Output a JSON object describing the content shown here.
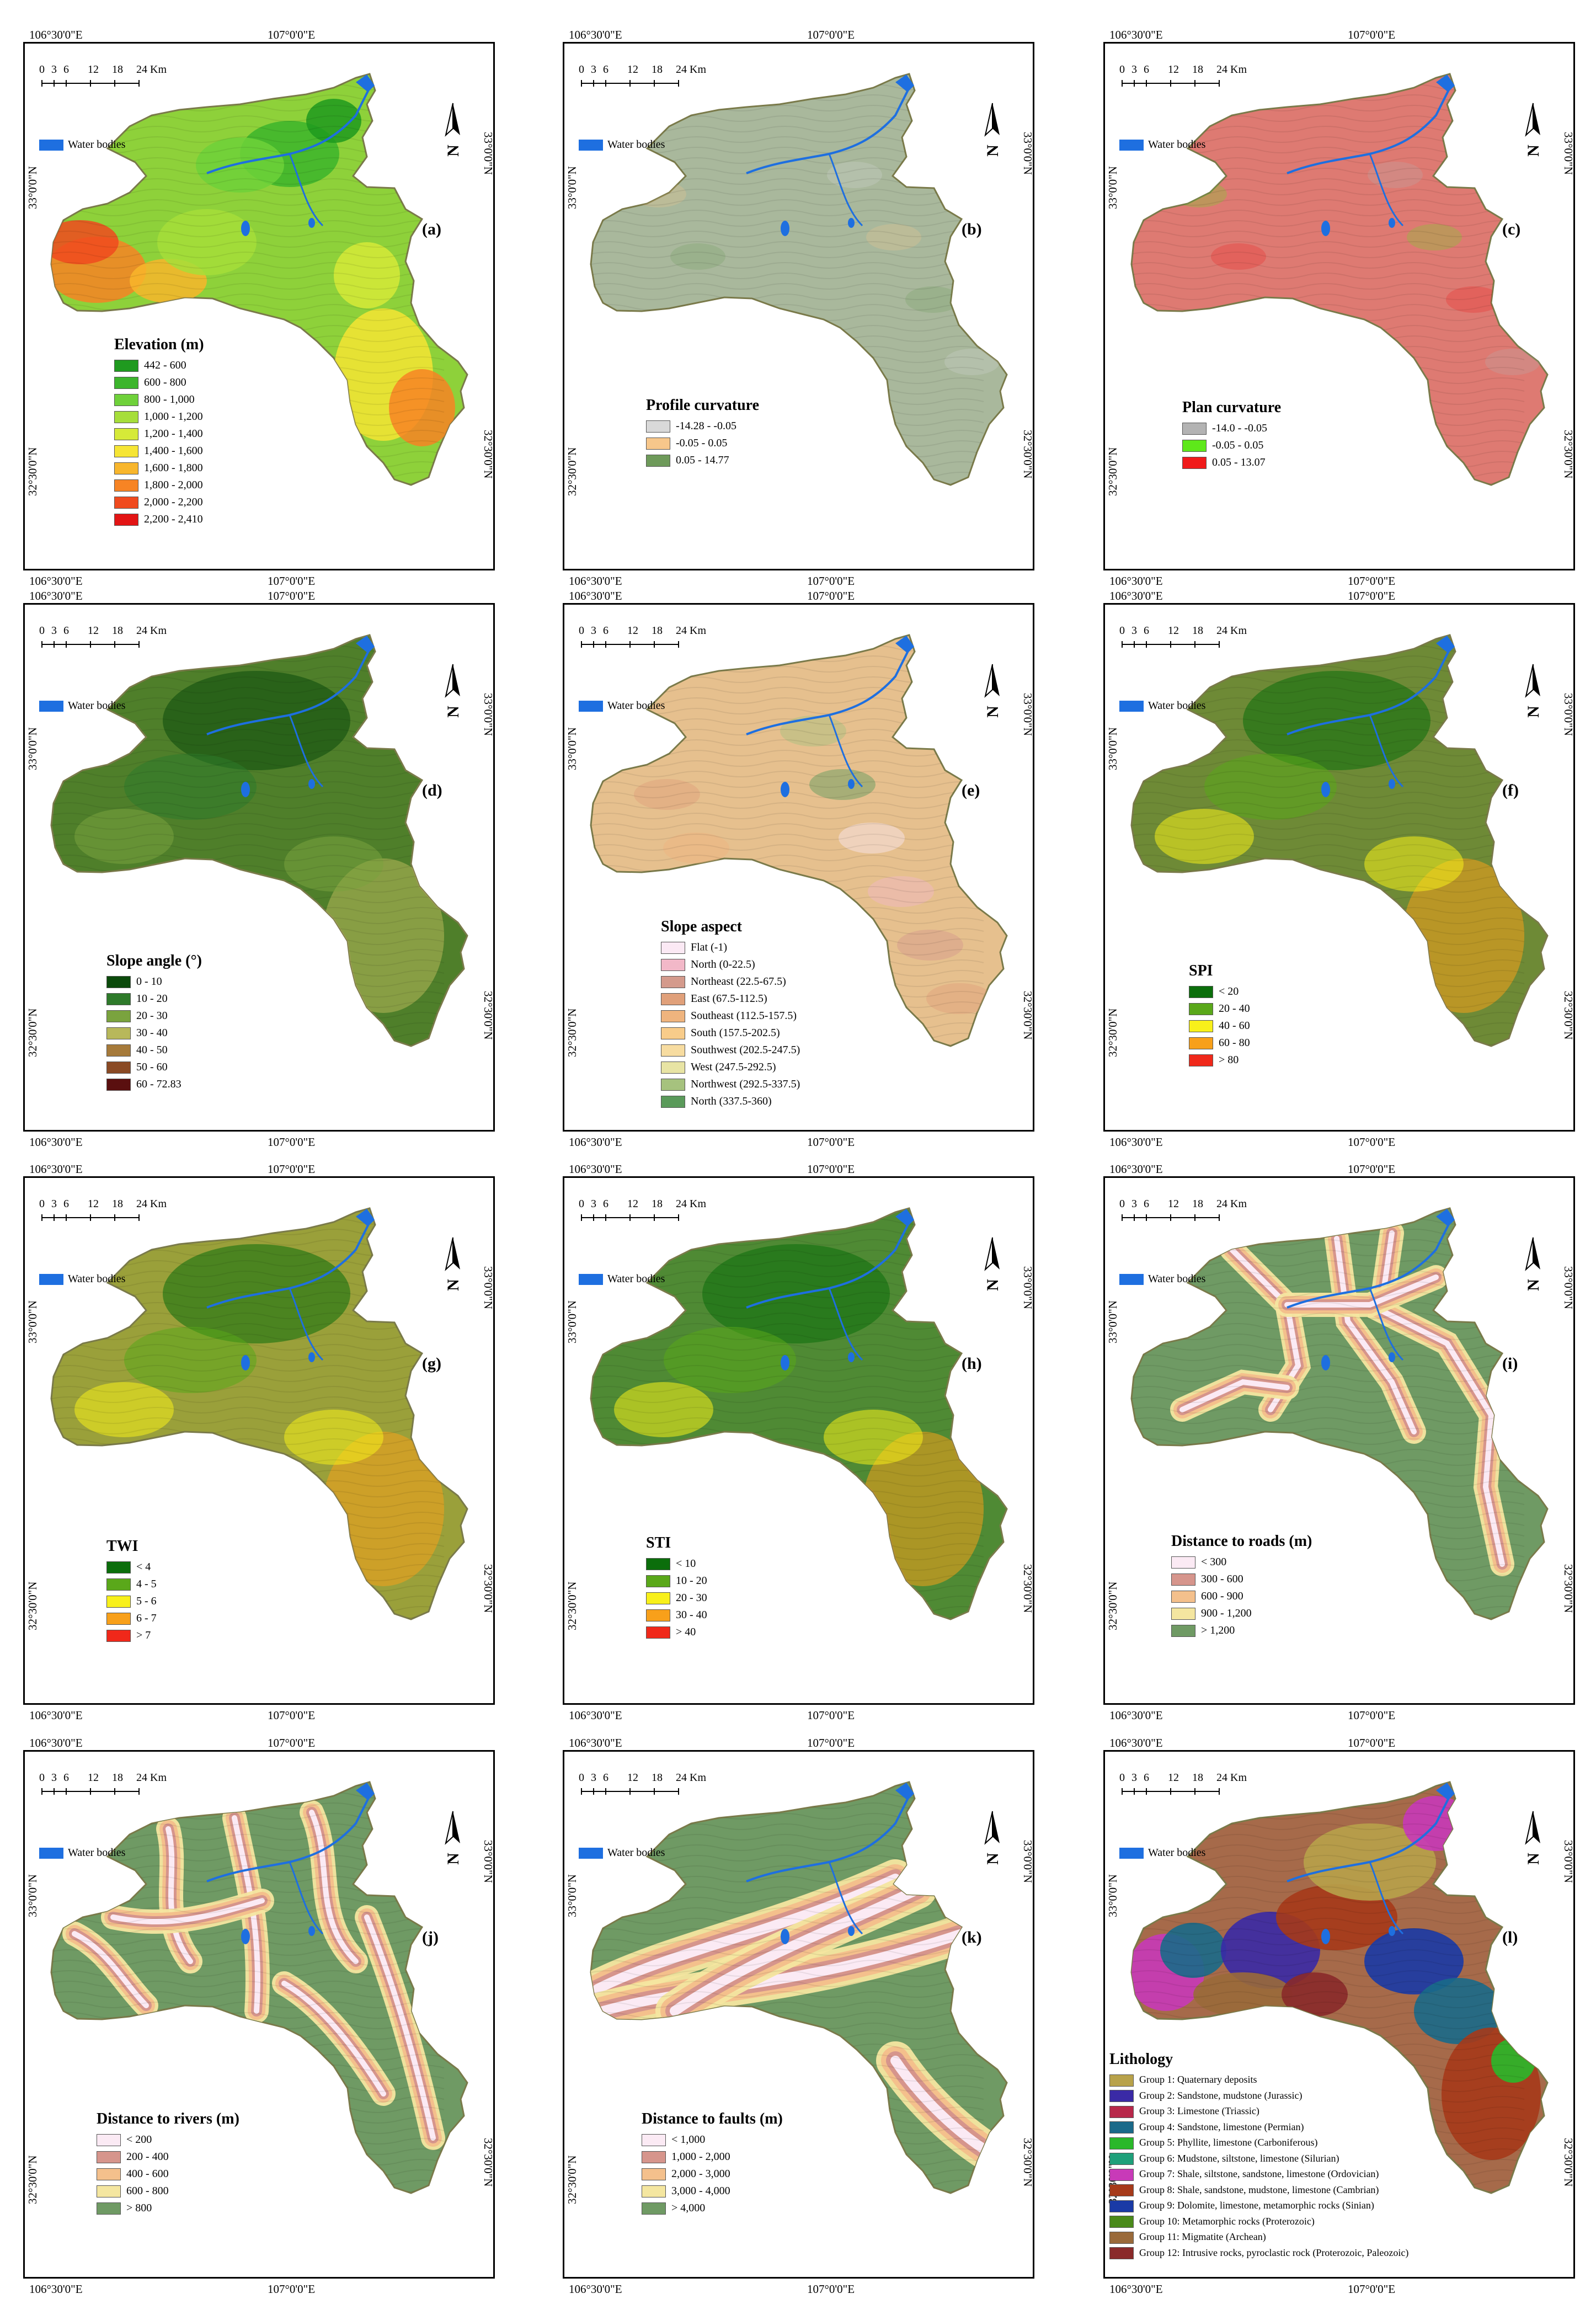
{
  "coords": {
    "top_left": "106°30'0\"E",
    "top_right": "107°0'0\"E",
    "bottom_left": "106°30'0\"E",
    "bottom_right": "107°0'0\"E",
    "lat_top": "33°0'0\"N",
    "lat_bottom": "32°30'0\"N"
  },
  "scale": {
    "ticks": [
      "0",
      "3",
      "6",
      "12",
      "18",
      "24 Km"
    ]
  },
  "water_label": "Water bodies",
  "water_color": "#1e6fe0",
  "north_symbol": "N",
  "panels": [
    {
      "id": "a",
      "tag": "(a)",
      "legend_title": "Elevation (m)",
      "base_color": "#8ed13a",
      "items": [
        {
          "label": "442 - 600",
          "color": "#1f9a1f"
        },
        {
          "label": "600 - 800",
          "color": "#3cb52c"
        },
        {
          "label": "800 - 1,000",
          "color": "#6fd13a"
        },
        {
          "label": "1,000 - 1,200",
          "color": "#a6de3a"
        },
        {
          "label": "1,200 - 1,400",
          "color": "#d6ea38"
        },
        {
          "label": "1,400 - 1,600",
          "color": "#f6e534"
        },
        {
          "label": "1,600 - 1,800",
          "color": "#f8b62c"
        },
        {
          "label": "1,800 - 2,000",
          "color": "#f78424"
        },
        {
          "label": "2,000 - 2,200",
          "color": "#f04a1e"
        },
        {
          "label": "2,200 - 2,410",
          "color": "#e31414"
        }
      ]
    },
    {
      "id": "b",
      "tag": "(b)",
      "legend_title": "Profile curvature",
      "base_color": "#a9b89c",
      "items": [
        {
          "label": "-14.28 - -0.05",
          "color": "#d9d9d9"
        },
        {
          "label": "-0.05 - 0.05",
          "color": "#f7c78b"
        },
        {
          "label": "0.05 - 14.77",
          "color": "#6e9a5a"
        }
      ]
    },
    {
      "id": "c",
      "tag": "(c)",
      "legend_title": "Plan curvature",
      "base_color": "#de7a72",
      "items": [
        {
          "label": "-14.0 - -0.05",
          "color": "#b3b3b3"
        },
        {
          "label": "-0.05 - 0.05",
          "color": "#5ee81a"
        },
        {
          "label": "0.05 - 13.07",
          "color": "#f01a1a"
        }
      ]
    },
    {
      "id": "d",
      "tag": "(d)",
      "legend_title": "Slope angle (°)",
      "base_color": "#4f7f2a",
      "items": [
        {
          "label": "0 - 10",
          "color": "#0b4a0b"
        },
        {
          "label": "10 - 20",
          "color": "#2e7a2a"
        },
        {
          "label": "20 - 30",
          "color": "#7aa33e"
        },
        {
          "label": "30 - 40",
          "color": "#b8b85a"
        },
        {
          "label": "40 - 50",
          "color": "#a67a3a"
        },
        {
          "label": "50 - 60",
          "color": "#8a4a24"
        },
        {
          "label": "60 - 72.83",
          "color": "#5a0f0f"
        }
      ]
    },
    {
      "id": "e",
      "tag": "(e)",
      "legend_title": "Slope aspect",
      "base_color": "#e6c08e",
      "items": [
        {
          "label": "Flat (-1)",
          "color": "#fbe9f4"
        },
        {
          "label": "North (0-22.5)",
          "color": "#f2b8c8"
        },
        {
          "label": "Northeast (22.5-67.5)",
          "color": "#d49a8c"
        },
        {
          "label": "East (67.5-112.5)",
          "color": "#e0a07a"
        },
        {
          "label": "Southeast (112.5-157.5)",
          "color": "#efb47e"
        },
        {
          "label": "South (157.5-202.5)",
          "color": "#f8cc8a"
        },
        {
          "label": "Southwest (202.5-247.5)",
          "color": "#f7dca0"
        },
        {
          "label": "West (247.5-292.5)",
          "color": "#e8e4a4"
        },
        {
          "label": "Northwest (292.5-337.5)",
          "color": "#a6c27e"
        },
        {
          "label": "North (337.5-360)",
          "color": "#5a9a5a"
        }
      ]
    },
    {
      "id": "f",
      "tag": "(f)",
      "legend_title": "SPI",
      "base_color": "#6e8a36",
      "items": [
        {
          "label": "< 20",
          "color": "#0b6e0b"
        },
        {
          "label": "20 - 40",
          "color": "#5aa81a"
        },
        {
          "label": "40 - 60",
          "color": "#f8f01a"
        },
        {
          "label": "60 - 80",
          "color": "#f8a01a"
        },
        {
          "label": "> 80",
          "color": "#f0281a"
        }
      ]
    },
    {
      "id": "g",
      "tag": "(g)",
      "legend_title": "TWI",
      "base_color": "#9aa03a",
      "items": [
        {
          "label": "< 4",
          "color": "#0b6e0b"
        },
        {
          "label": "4 - 5",
          "color": "#5aa81a"
        },
        {
          "label": "5 - 6",
          "color": "#f8f01a"
        },
        {
          "label": "6 - 7",
          "color": "#f8a01a"
        },
        {
          "label": "> 7",
          "color": "#f0281a"
        }
      ]
    },
    {
      "id": "h",
      "tag": "(h)",
      "legend_title": "STI",
      "base_color": "#4f8a34",
      "items": [
        {
          "label": "< 10",
          "color": "#0b6e0b"
        },
        {
          "label": "10 - 20",
          "color": "#5aa81a"
        },
        {
          "label": "20 - 30",
          "color": "#f8f01a"
        },
        {
          "label": "30 - 40",
          "color": "#f8a01a"
        },
        {
          "label": "> 40",
          "color": "#f0281a"
        }
      ]
    },
    {
      "id": "i",
      "tag": "(i)",
      "legend_title": "Distance to roads (m)",
      "base_color": "#6f9a64",
      "items": [
        {
          "label": "< 300",
          "color": "#fbeaf4"
        },
        {
          "label": "300 - 600",
          "color": "#d6958c"
        },
        {
          "label": "600 - 900",
          "color": "#f4c08c"
        },
        {
          "label": "900 - 1,200",
          "color": "#f4e6a0"
        },
        {
          "label": "> 1,200",
          "color": "#6f9a64"
        }
      ]
    },
    {
      "id": "j",
      "tag": "(j)",
      "legend_title": "Distance to rivers (m)",
      "base_color": "#6f9a64",
      "items": [
        {
          "label": "< 200",
          "color": "#fbeaf4"
        },
        {
          "label": "200 - 400",
          "color": "#d6958c"
        },
        {
          "label": "400 - 600",
          "color": "#f4c08c"
        },
        {
          "label": "600 - 800",
          "color": "#f4e6a0"
        },
        {
          "label": "> 800",
          "color": "#6f9a64"
        }
      ]
    },
    {
      "id": "k",
      "tag": "(k)",
      "legend_title": "Distance to faults (m)",
      "base_color": "#6f9a64",
      "items": [
        {
          "label": "< 1,000",
          "color": "#fbeaf4"
        },
        {
          "label": "1,000 - 2,000",
          "color": "#d6958c"
        },
        {
          "label": "2,000 - 3,000",
          "color": "#f4c08c"
        },
        {
          "label": "3,000 - 4,000",
          "color": "#f4e6a0"
        },
        {
          "label": "> 4,000",
          "color": "#6f9a64"
        }
      ]
    },
    {
      "id": "l",
      "tag": "(l)",
      "legend_title": "Lithology",
      "base_color": "#a66a4a",
      "items": [
        {
          "label": "Group 1: Quaternary deposits",
          "color": "#b8a24a"
        },
        {
          "label": "Group 2: Sandstone, mudstone (Jurassic)",
          "color": "#3a2aa6"
        },
        {
          "label": "Group 3: Limestone (Triassic)",
          "color": "#b8284a"
        },
        {
          "label": "Group 4: Sandstone, limestone (Permian)",
          "color": "#1a6a8a"
        },
        {
          "label": "Group 5: Phyllite, limestone (Carboniferous)",
          "color": "#2ab82a"
        },
        {
          "label": "Group 6: Mudstone, siltstone, limestone (Silurian)",
          "color": "#1ea07a"
        },
        {
          "label": "Group 7: Shale, siltstone, sandstone, limestone (Ordovician)",
          "color": "#c83ab8"
        },
        {
          "label": "Group 8: Shale, sandstone, mudstone, limestone (Cambrian)",
          "color": "#a63a1a"
        },
        {
          "label": "Group 9: Dolomite, limestone, metamorphic rocks (Sinian)",
          "color": "#1a3aa6"
        },
        {
          "label": "Group 10: Metamorphic rocks (Proterozoic)",
          "color": "#4a8a1a"
        },
        {
          "label": "Group 11: Migmatite (Archean)",
          "color": "#9a6a3a"
        },
        {
          "label": "Group 12: Intrusive rocks, pyroclastic rock (Proterozoic, Paleozoic)",
          "color": "#8a2a2a"
        }
      ]
    }
  ]
}
